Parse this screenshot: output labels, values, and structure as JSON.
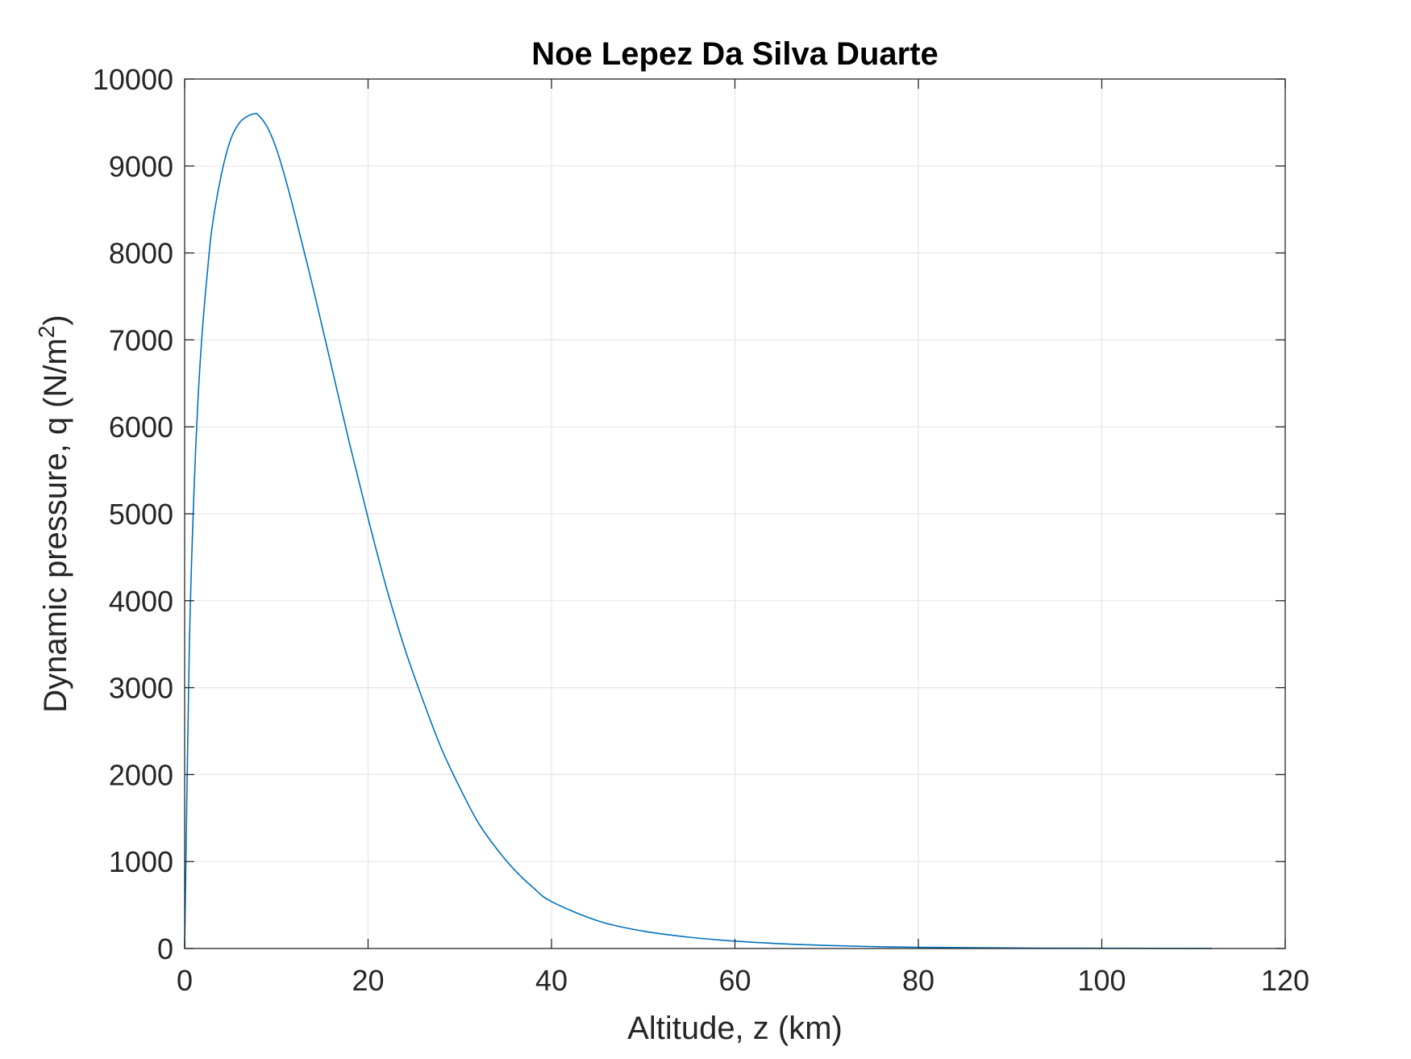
{
  "chart_data": {
    "type": "line",
    "title": "Noe Lepez Da Silva Duarte",
    "xlabel": "Altitude, z (km)",
    "ylabel_main": "Dynamic pressure, q (N/m",
    "ylabel_sup": "2",
    "ylabel_close": ")",
    "xlim": [
      0,
      120
    ],
    "ylim": [
      0,
      10000
    ],
    "x_ticks": [
      0,
      20,
      40,
      60,
      80,
      100,
      120
    ],
    "y_ticks": [
      0,
      1000,
      2000,
      3000,
      4000,
      5000,
      6000,
      7000,
      8000,
      9000,
      10000
    ],
    "grid": true,
    "colors": {
      "line": "#0072bd",
      "grid": "#e6e6e6",
      "axes": "#262626"
    },
    "series": [
      {
        "x": [
          0,
          0.5,
          1,
          1.5,
          2,
          2.5,
          3,
          4,
          5,
          6,
          7,
          7.6,
          8,
          9,
          10,
          11,
          12,
          14,
          16,
          18,
          20,
          22,
          24,
          26,
          28,
          30,
          32,
          34,
          36,
          38,
          40,
          45,
          50,
          55,
          60,
          65,
          70,
          75,
          80,
          90,
          100,
          112
        ],
        "y": [
          0,
          3400,
          5200,
          6400,
          7200,
          7800,
          8300,
          8900,
          9300,
          9500,
          9580,
          9600,
          9590,
          9450,
          9200,
          8850,
          8450,
          7600,
          6700,
          5800,
          4950,
          4150,
          3450,
          2850,
          2300,
          1850,
          1450,
          1150,
          900,
          700,
          540,
          320,
          200,
          130,
          85,
          55,
          35,
          22,
          14,
          6,
          3,
          1
        ]
      }
    ]
  }
}
